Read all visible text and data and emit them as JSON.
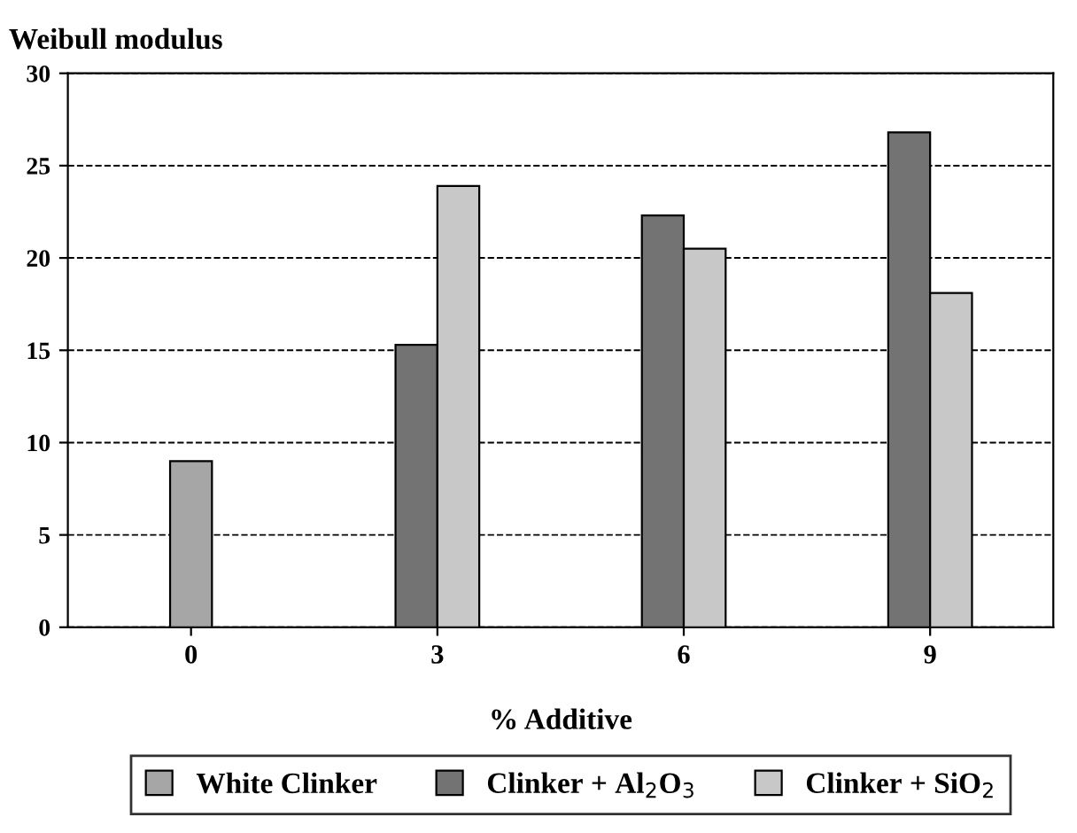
{
  "chart_data": {
    "type": "bar",
    "title": "Weibull modulus",
    "xlabel": "% Additive",
    "categories": [
      "0",
      "3",
      "6",
      "9"
    ],
    "series": [
      {
        "name": "White Clinker",
        "color": "#a6a6a6",
        "values": [
          9.0,
          null,
          null,
          null
        ]
      },
      {
        "name": "Clinker + Al$_{2}$O$_{3}$",
        "color": "#737373",
        "values": [
          null,
          15.3,
          22.3,
          26.8
        ]
      },
      {
        "name": "Clinker + SiO$_{2}$",
        "color": "#c8c8c8",
        "values": [
          null,
          23.9,
          20.5,
          18.1
        ]
      }
    ],
    "ylim": [
      0,
      30
    ],
    "yticks": [
      0,
      5,
      10,
      15,
      20,
      25,
      30
    ],
    "grid": "y",
    "line_style": "dashed",
    "legend": "bottom"
  }
}
